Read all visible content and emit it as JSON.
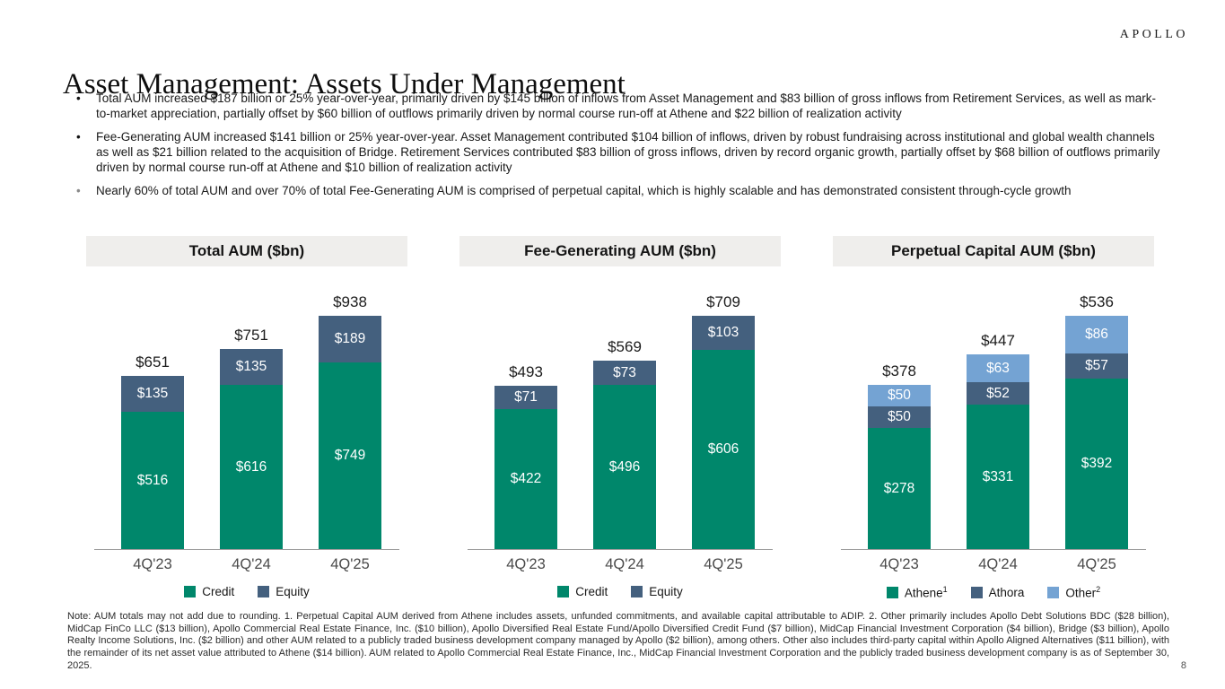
{
  "logo": "APOLLO",
  "title": "Asset Management: Assets Under Management",
  "bullet_marker": "•",
  "bullets": [
    {
      "text": "Total AUM increased $187 billion or 25% year-over-year, primarily driven by $145 billion of inflows from Asset Management and $83 billion of gross inflows from Retirement Services, as well as mark-to-market appreciation, partially offset by $60 billion of outflows primarily driven by normal course run-off at Athene and $22 billion of realization activity"
    },
    {
      "text": "Fee-Generating AUM increased $141 billion or 25% year-over-year. Asset Management contributed $104 billion of inflows, driven by robust fundraising across institutional and global wealth channels as well as $21 billion related to the acquisition of Bridge. Retirement Services contributed $83 billion of gross inflows, driven by record organic growth, partially offset by $68 billion of outflows primarily driven by normal course run-off at Athene and $10 billion of realization activity"
    },
    {
      "text": "Nearly 60% of total AUM and over 70% of total Fee-Generating AUM is comprised of perpetual capital, which is highly scalable and has demonstrated consistent through-cycle growth"
    }
  ],
  "colors": {
    "green": "#00876B",
    "dark_blue": "#44607E",
    "light_blue": "#74A3D3",
    "header_bg": "#EFEEEC",
    "axis": "#9E9E9E"
  },
  "chart_data": [
    {
      "type": "bar",
      "stacked": true,
      "title": "Total AUM ($bn)",
      "categories": [
        "4Q'23",
        "4Q'24",
        "4Q'25"
      ],
      "series": [
        {
          "name": "Credit",
          "color": "green",
          "values": [
            516,
            616,
            749
          ]
        },
        {
          "name": "Equity",
          "color": "dark_blue",
          "values": [
            135,
            135,
            189
          ]
        }
      ],
      "totals": [
        651,
        751,
        938
      ],
      "value_prefix": "$",
      "legend_position": "bottom",
      "grid": false
    },
    {
      "type": "bar",
      "stacked": true,
      "title": "Fee-Generating AUM ($bn)",
      "categories": [
        "4Q'23",
        "4Q'24",
        "4Q'25"
      ],
      "series": [
        {
          "name": "Credit",
          "color": "green",
          "values": [
            422,
            496,
            606
          ]
        },
        {
          "name": "Equity",
          "color": "dark_blue",
          "values": [
            71,
            73,
            103
          ]
        }
      ],
      "totals": [
        493,
        569,
        709
      ],
      "value_prefix": "$",
      "legend_position": "bottom",
      "grid": false
    },
    {
      "type": "bar",
      "stacked": true,
      "title": "Perpetual Capital AUM ($bn)",
      "categories": [
        "4Q'23",
        "4Q'24",
        "4Q'25"
      ],
      "series": [
        {
          "name": "Athene",
          "sup": "1",
          "color": "green",
          "values": [
            278,
            331,
            392
          ]
        },
        {
          "name": "Athora",
          "sup": "",
          "color": "dark_blue",
          "values": [
            50,
            52,
            57
          ]
        },
        {
          "name": "Other",
          "sup": "2",
          "color": "light_blue",
          "values": [
            50,
            63,
            86
          ]
        }
      ],
      "totals": [
        378,
        447,
        536
      ],
      "value_prefix": "$",
      "legend_position": "bottom",
      "grid": false
    }
  ],
  "footnote": "Note: AUM totals may not add due to rounding. 1. Perpetual Capital AUM derived from Athene includes assets, unfunded commitments, and available capital attributable to ADIP. 2. Other primarily includes Apollo Debt Solutions BDC ($28 billion), MidCap FinCo LLC ($13 billion), Apollo Commercial Real Estate Finance, Inc. ($10 billion), Apollo Diversified Real Estate Fund/Apollo Diversified Credit Fund ($7 billion), MidCap Financial Investment Corporation ($4 billion), Bridge ($3 billion), Apollo Realty Income Solutions, Inc. ($2 billion) and other AUM related to a publicly traded business development company managed by Apollo ($2 billion), among others. Other also includes third-party capital within Apollo Aligned Alternatives ($11 billion), with the remainder of its net asset value attributed to Athene ($14 billion). AUM related to Apollo Commercial Real Estate Finance, Inc., MidCap Financial Investment Corporation and the publicly traded business development company is as of September 30, 2025.",
  "page_number": "8"
}
